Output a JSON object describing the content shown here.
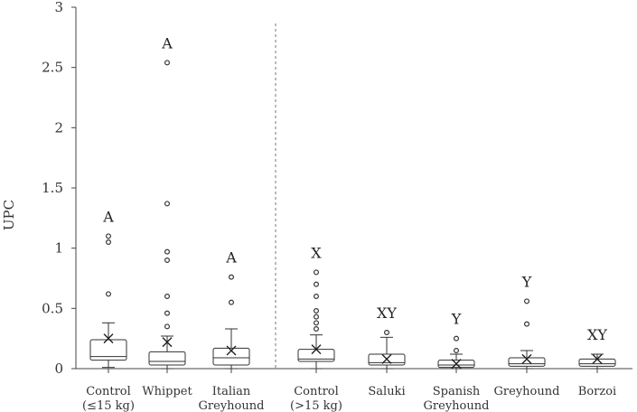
{
  "chart_data": {
    "type": "box",
    "title": "",
    "xlabel": "",
    "ylabel": "UPC",
    "ylim": [
      0,
      3
    ],
    "yticks": [
      0,
      0.5,
      1,
      1.5,
      2,
      2.5,
      3
    ],
    "grid": false,
    "divider_after_category": 3,
    "categories": [
      {
        "label_lines": [
          "Control",
          "(≤15 kg)"
        ],
        "sig": "A",
        "whisker_low": 0.01,
        "q1": 0.07,
        "median": 0.1,
        "q3": 0.24,
        "whisker_high": 0.38,
        "mean": 0.25,
        "outliers": [
          0.62,
          1.05,
          1.1
        ]
      },
      {
        "label_lines": [
          "Whippet"
        ],
        "sig": "A",
        "whisker_low": 0.0,
        "q1": 0.03,
        "median": 0.06,
        "q3": 0.14,
        "whisker_high": 0.27,
        "mean": 0.22,
        "outliers": [
          0.35,
          0.46,
          0.6,
          0.9,
          0.97,
          1.37,
          2.54
        ]
      },
      {
        "label_lines": [
          "Italian",
          "Greyhound"
        ],
        "sig": "A",
        "whisker_low": 0.0,
        "q1": 0.03,
        "median": 0.09,
        "q3": 0.17,
        "whisker_high": 0.33,
        "mean": 0.15,
        "outliers": [
          0.55,
          0.76
        ]
      },
      {
        "label_lines": [
          "Control",
          "(>15 kg)"
        ],
        "sig": "X",
        "whisker_low": 0.0,
        "q1": 0.06,
        "median": 0.08,
        "q3": 0.16,
        "whisker_high": 0.28,
        "mean": 0.16,
        "outliers": [
          0.33,
          0.38,
          0.43,
          0.48,
          0.6,
          0.7,
          0.8
        ]
      },
      {
        "label_lines": [
          "Saluki"
        ],
        "sig": "XY",
        "whisker_low": 0.0,
        "q1": 0.03,
        "median": 0.05,
        "q3": 0.12,
        "whisker_high": 0.26,
        "mean": 0.08,
        "outliers": [
          0.3
        ]
      },
      {
        "label_lines": [
          "Spanish",
          "Greyhound"
        ],
        "sig": "Y",
        "whisker_low": 0.0,
        "q1": 0.01,
        "median": 0.03,
        "q3": 0.07,
        "whisker_high": 0.12,
        "mean": 0.04,
        "outliers": [
          0.15,
          0.25
        ]
      },
      {
        "label_lines": [
          "Greyhound"
        ],
        "sig": "Y",
        "whisker_low": 0.0,
        "q1": 0.02,
        "median": 0.04,
        "q3": 0.09,
        "whisker_high": 0.15,
        "mean": 0.08,
        "outliers": [
          0.37,
          0.56
        ]
      },
      {
        "label_lines": [
          "Borzoi"
        ],
        "sig": "XY",
        "whisker_low": 0.0,
        "q1": 0.02,
        "median": 0.04,
        "q3": 0.08,
        "whisker_high": 0.12,
        "mean": 0.08,
        "outliers": []
      }
    ]
  }
}
